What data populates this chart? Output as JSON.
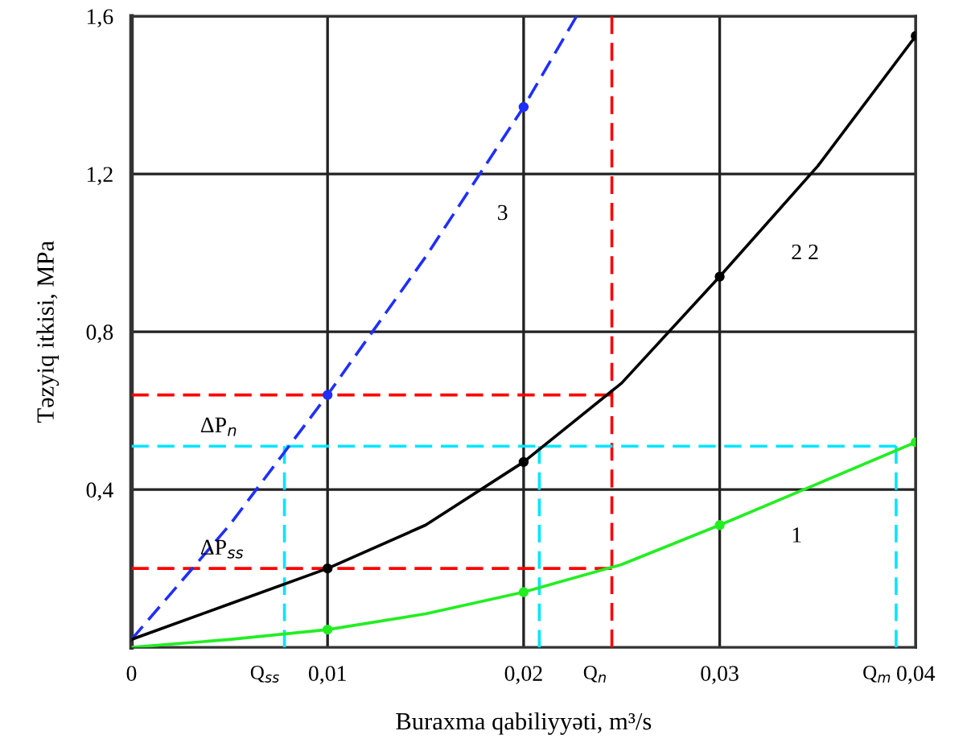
{
  "chart_data": {
    "type": "line",
    "xlabel": "Buraxma qabiliyyəti, m³/s",
    "ylabel": "Təzyiq itkisi, MPa",
    "xlim": [
      0,
      0.04
    ],
    "ylim": [
      0,
      1.6
    ],
    "xticks": [
      {
        "value": 0,
        "label": "0"
      },
      {
        "value": 0.01,
        "label": "0,01"
      },
      {
        "value": 0.02,
        "label": "0,02"
      },
      {
        "value": 0.03,
        "label": "0,03"
      },
      {
        "value": 0.04,
        "label": "0,04"
      }
    ],
    "yticks": [
      {
        "value": 0.4,
        "label": "0,4"
      },
      {
        "value": 0.8,
        "label": "0,8"
      },
      {
        "value": 1.2,
        "label": "1,2"
      },
      {
        "value": 1.6,
        "label": "1,6"
      }
    ],
    "grid": true,
    "legend": false,
    "series": [
      {
        "color": "#ff0000",
        "line_style": "dashed",
        "marker": "none",
        "x": [
          0,
          0.0245
        ],
        "values": [
          0.64,
          0.64
        ]
      },
      {
        "color": "#ff0000",
        "line_style": "dashed",
        "marker": "none",
        "x": [
          0,
          0.0245
        ],
        "values": [
          0.2,
          0.2
        ]
      },
      {
        "color": "#ff0000",
        "line_style": "dashed",
        "marker": "none",
        "x": [
          0.0245,
          0.0245
        ],
        "values": [
          0,
          1.6
        ]
      },
      {
        "color": "#00e5ff",
        "line_style": "dashed",
        "marker": "none",
        "x": [
          0,
          0.039
        ],
        "values": [
          0.51,
          0.51
        ]
      },
      {
        "color": "#00e5ff",
        "line_style": "dashed",
        "marker": "none",
        "x": [
          0.0078,
          0.0078
        ],
        "values": [
          0,
          0.51
        ]
      },
      {
        "color": "#00e5ff",
        "line_style": "dashed",
        "marker": "none",
        "x": [
          0.0208,
          0.0208
        ],
        "values": [
          0,
          0.51
        ]
      },
      {
        "color": "#00e5ff",
        "line_style": "dashed",
        "marker": "none",
        "x": [
          0.039,
          0.039
        ],
        "values": [
          0,
          0.51
        ]
      },
      {
        "name": "3",
        "color": "#1f2fff",
        "line_style": "dashed",
        "marker": "none",
        "x": [
          0,
          0.005,
          0.01,
          0.015,
          0.02,
          0.0227
        ],
        "values": [
          0.02,
          0.31,
          0.64,
          0.99,
          1.37,
          1.6
        ]
      },
      {
        "name": "2 2",
        "color": "#000000",
        "line_style": "solid",
        "marker": "none",
        "x": [
          0,
          0.005,
          0.01,
          0.015,
          0.02,
          0.025,
          0.03,
          0.035,
          0.04
        ],
        "values": [
          0.02,
          0.11,
          0.2,
          0.31,
          0.47,
          0.67,
          0.94,
          1.22,
          1.55
        ]
      },
      {
        "name": "1",
        "color": "#22ee22",
        "line_style": "solid",
        "marker": "none",
        "x": [
          0,
          0.005,
          0.01,
          0.015,
          0.02,
          0.025,
          0.03,
          0.035,
          0.04
        ],
        "values": [
          0,
          0.02,
          0.045,
          0.085,
          0.14,
          0.21,
          0.31,
          0.415,
          0.52
        ]
      },
      {
        "type": "scatter",
        "color": "#1f2fff",
        "marker": "circle",
        "x": [
          0.01,
          0.02
        ],
        "values": [
          0.64,
          1.37
        ]
      },
      {
        "type": "scatter",
        "color": "#000000",
        "marker": "circle",
        "x": [
          0.01,
          0.02,
          0.03,
          0.04
        ],
        "values": [
          0.2,
          0.47,
          0.94,
          1.55
        ]
      },
      {
        "type": "scatter",
        "color": "#22ee22",
        "marker": "circle",
        "x": [
          0.01,
          0.02,
          0.03,
          0.04
        ],
        "values": [
          0.045,
          0.14,
          0.31,
          0.52
        ]
      }
    ],
    "annotations": [
      {
        "text": "ΔP$_{n}$",
        "x": 0.0035,
        "y": 0.51
      },
      {
        "text": "ΔP$_{ss}$",
        "x": 0.0035,
        "y": 0.2
      },
      {
        "text": "Q$_{ss}$",
        "x": 0.0078,
        "y": 0
      },
      {
        "text": "Q$_{n}$",
        "x": 0.0245,
        "y": 0
      },
      {
        "text": "Q$_{m}$",
        "x": 0.039,
        "y": 0
      }
    ]
  }
}
